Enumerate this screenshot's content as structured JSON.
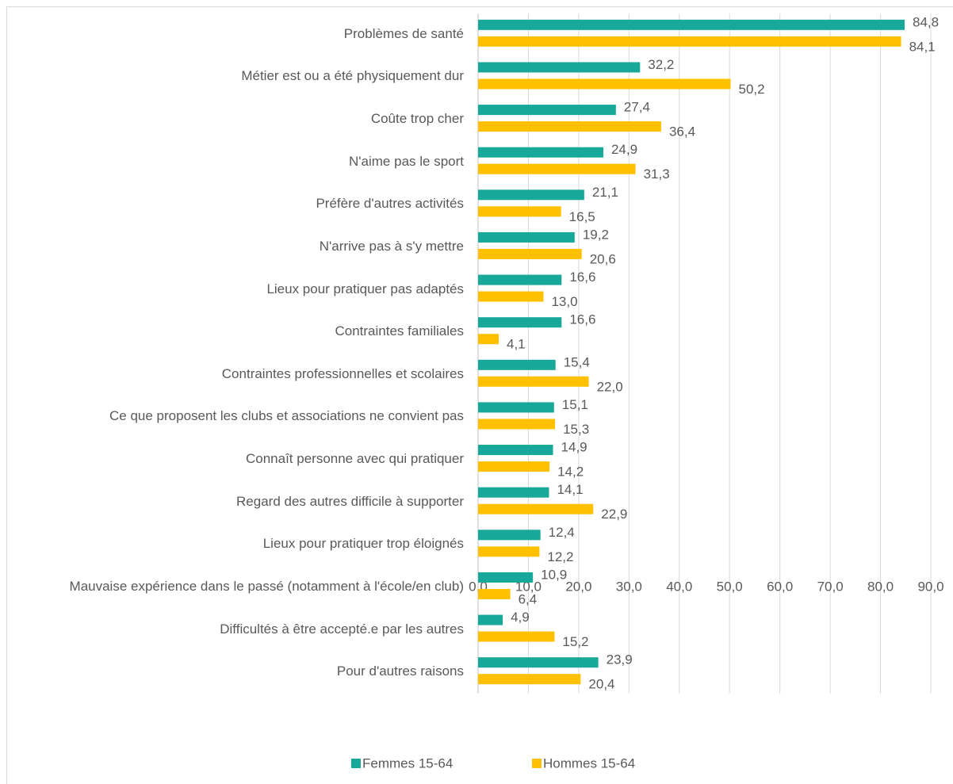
{
  "chart_data": {
    "type": "bar",
    "orientation": "horizontal",
    "categories": [
      "Problèmes de santé",
      "Métier est ou a été physiquement dur",
      "Coûte trop cher",
      "N'aime pas le sport",
      "Préfère d'autres activités",
      "N'arrive pas à s'y mettre",
      "Lieux pour pratiquer pas adaptés",
      "Contraintes familiales",
      "Contraintes professionnelles et scolaires",
      "Ce que proposent les clubs et associations ne convient pas",
      "Connaît personne avec qui pratiquer",
      "Regard des autres difficile à supporter",
      "Lieux pour pratiquer trop éloignés",
      "Mauvaise expérience dans le passé (notamment à l'école/en club)",
      "Difficultés à être accepté.e par les autres",
      "Pour d'autres raisons"
    ],
    "series": [
      {
        "name": "Femmes 15-64",
        "color": "#17a89a",
        "values": [
          84.8,
          32.2,
          27.4,
          24.9,
          21.1,
          19.2,
          16.6,
          16.6,
          15.4,
          15.1,
          14.9,
          14.1,
          12.4,
          10.9,
          4.9,
          23.9
        ],
        "value_labels": [
          "84,8",
          "32,2",
          "27,4",
          "24,9",
          "21,1",
          "19,2",
          "16,6",
          "16,6",
          "15,4",
          "15,1",
          "14,9",
          "14,1",
          "12,4",
          "10,9",
          "4,9",
          "23,9"
        ]
      },
      {
        "name": "Hommes 15-64",
        "color": "#ffc000",
        "values": [
          84.1,
          50.2,
          36.4,
          31.3,
          16.5,
          20.6,
          13.0,
          4.1,
          22.0,
          15.3,
          14.2,
          22.9,
          12.2,
          6.4,
          15.2,
          20.4
        ],
        "value_labels": [
          "84,1",
          "50,2",
          "36,4",
          "31,3",
          "16,5",
          "20,6",
          "13,0",
          "4,1",
          "22,0",
          "15,3",
          "14,2",
          "22,9",
          "12,2",
          "6,4",
          "15,2",
          "20,4"
        ]
      }
    ],
    "xlim": [
      0,
      90
    ],
    "xticks": [
      {
        "value": 0,
        "label": "0,0"
      },
      {
        "value": 10,
        "label": "10,0"
      },
      {
        "value": 20,
        "label": "20,0"
      },
      {
        "value": 30,
        "label": "30,0"
      },
      {
        "value": 40,
        "label": "40,0"
      },
      {
        "value": 50,
        "label": "50,0"
      },
      {
        "value": 60,
        "label": "60,0"
      },
      {
        "value": 70,
        "label": "70,0"
      },
      {
        "value": 80,
        "label": "80,0"
      },
      {
        "value": 90,
        "label": "90,0"
      }
    ],
    "grid": true,
    "legend": "bottom"
  }
}
